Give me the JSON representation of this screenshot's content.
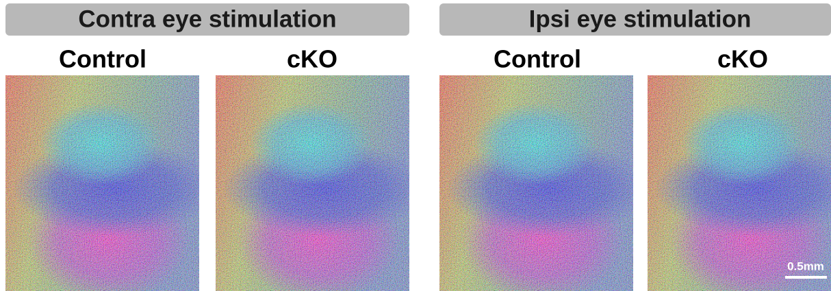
{
  "panels": [
    {
      "title": "Contra eye stimulation",
      "columns": [
        "Control",
        "cKO"
      ]
    },
    {
      "title": "Ipsi eye stimulation",
      "columns": [
        "Control",
        "cKO"
      ]
    }
  ],
  "scale_bar": "0.5mm"
}
